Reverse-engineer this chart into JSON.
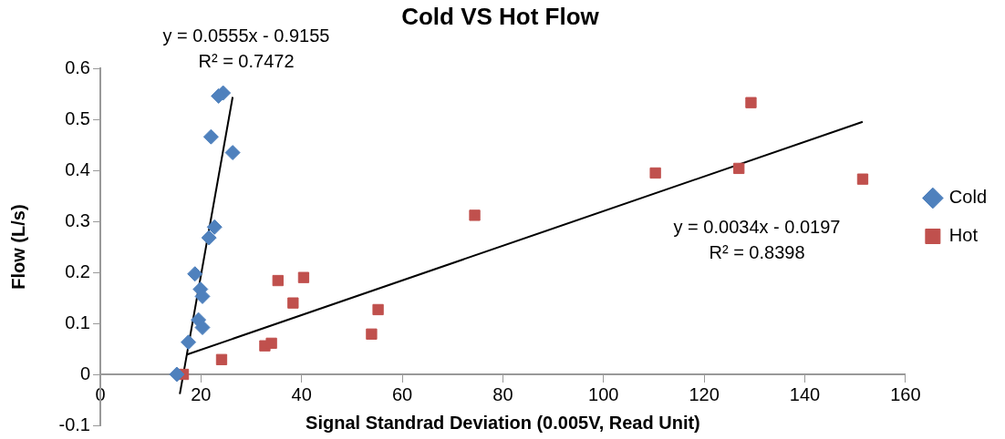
{
  "chart_data": {
    "type": "scatter",
    "title": "Cold VS Hot Flow",
    "xlabel": "Signal Standrad Deviation (0.005V, Read Unit)",
    "ylabel": "Flow (L/s)",
    "xlim": [
      0,
      160
    ],
    "xticks": [
      0,
      20,
      40,
      60,
      80,
      100,
      120,
      140,
      160
    ],
    "ylim": [
      -0.1,
      0.6
    ],
    "yticks": [
      -0.1,
      0,
      0.1,
      0.2,
      0.3,
      0.4,
      0.5,
      0.6
    ],
    "grid": false,
    "legend": "right",
    "series": [
      {
        "name": "Cold",
        "color": "#4f81bd",
        "marker": "diamond",
        "x": [
          24.4,
          23.5,
          22.0,
          26.3,
          22.7,
          21.6,
          18.8,
          19.9,
          20.3,
          19.5,
          20.3,
          17.5,
          15.2
        ],
        "values": [
          0.552,
          0.546,
          0.466,
          0.435,
          0.289,
          0.268,
          0.197,
          0.167,
          0.153,
          0.107,
          0.092,
          0.063,
          0
        ]
      },
      {
        "name": "Hot",
        "color": "#c0504d",
        "marker": "square",
        "x": [
          16.5,
          24.1,
          32.7,
          34.0,
          35.3,
          40.4,
          38.3,
          53.9,
          55.2,
          74.4,
          110.3,
          126.9,
          129.3,
          151.5
        ],
        "values": [
          0,
          0.029,
          0.056,
          0.061,
          0.184,
          0.19,
          0.14,
          0.079,
          0.127,
          0.312,
          0.395,
          0.404,
          0.533,
          0.383
        ]
      },
      {
        "type": "line",
        "color": "#000000",
        "marker": "none",
        "x": [
          15.8,
          26.3
        ],
        "values": [
          -0.0386,
          0.544
        ]
      },
      {
        "type": "line",
        "color": "#000000",
        "marker": "none",
        "x": [
          17.1,
          151.5
        ],
        "values": [
          0.0384,
          0.4954
        ]
      }
    ],
    "annotations": [
      "y = 0.0555x - 0.9155\nR² = 0.7472",
      "y = 0.0034x - 0.0197\nR² = 0.8398"
    ]
  }
}
